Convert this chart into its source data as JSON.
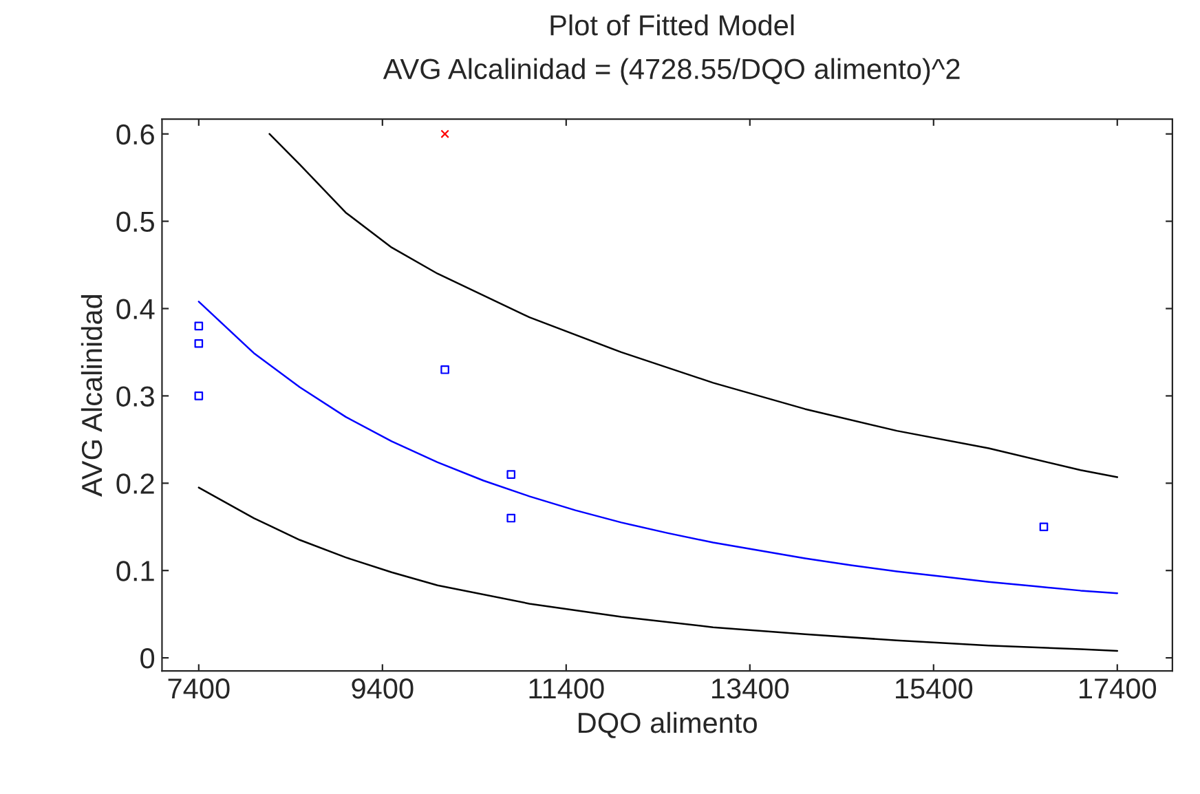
{
  "chart_data": {
    "type": "line",
    "title": "Plot of Fitted Model",
    "subtitle": "AVG Alcalinidad = (4728.55/DQO alimento)^2",
    "xlabel": "DQO alimento",
    "ylabel": "AVG Alcalinidad",
    "xlim": [
      7000,
      18000
    ],
    "xticks": [
      7400,
      9400,
      11400,
      13400,
      15400,
      17400
    ],
    "ylim": [
      -0.015,
      0.617
    ],
    "yticks": [
      0,
      0.1,
      0.2,
      0.3,
      0.4,
      0.5,
      0.6
    ],
    "grid": false,
    "legend": false,
    "series": [
      {
        "color": "#0000ff",
        "x": [
          7400,
          8000,
          8500,
          9000,
          9500,
          10000,
          10500,
          11000,
          11500,
          12000,
          12500,
          13000,
          13500,
          14000,
          14500,
          15000,
          15500,
          16000,
          16500,
          17000,
          17400
        ],
        "values": [
          0.408,
          0.349,
          0.31,
          0.276,
          0.248,
          0.224,
          0.203,
          0.185,
          0.169,
          0.155,
          0.143,
          0.132,
          0.123,
          0.114,
          0.106,
          0.099,
          0.093,
          0.087,
          0.082,
          0.077,
          0.074
        ]
      },
      {
        "type": "line",
        "color": "#000000",
        "x": [
          8170,
          8500,
          9000,
          9500,
          10000,
          11000,
          12000,
          13000,
          14000,
          15000,
          16000,
          17000,
          17400
        ],
        "values": [
          0.6,
          0.565,
          0.51,
          0.47,
          0.44,
          0.39,
          0.35,
          0.315,
          0.285,
          0.26,
          0.24,
          0.215,
          0.207
        ]
      },
      {
        "type": "line",
        "color": "#000000",
        "x": [
          7400,
          8000,
          8500,
          9000,
          9500,
          10000,
          11000,
          12000,
          13000,
          14000,
          15000,
          16000,
          17000,
          17400
        ],
        "values": [
          0.195,
          0.16,
          0.135,
          0.115,
          0.098,
          0.083,
          0.062,
          0.047,
          0.035,
          0.027,
          0.02,
          0.014,
          0.01,
          0.008
        ]
      },
      {
        "type": "scatter",
        "color": "#0000ff",
        "marker": "square",
        "x": [
          7400,
          7400,
          7400,
          10080,
          10800,
          10800,
          16600
        ],
        "values": [
          0.38,
          0.36,
          0.3,
          0.33,
          0.21,
          0.16,
          0.15
        ]
      },
      {
        "type": "scatter",
        "color": "#ff0000",
        "marker": "cross",
        "x": [
          10080
        ],
        "values": [
          0.6
        ]
      }
    ]
  }
}
